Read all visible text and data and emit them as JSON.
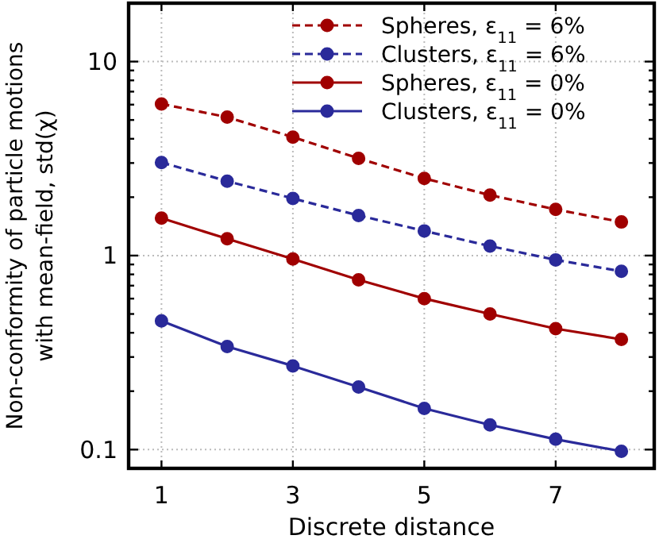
{
  "chart_data": {
    "type": "line",
    "xlabel": "Discrete distance",
    "ylabel": "Non-conformity of particle motions\nwith mean-field, std(χ)",
    "x": [
      1,
      2,
      3,
      4,
      5,
      6,
      7,
      8
    ],
    "series": [
      {
        "name": "Spheres, ε$_{11}$ = 6%",
        "color": "#a00000",
        "line_style": "dashed",
        "marker": "circle",
        "values": [
          6.05,
          5.17,
          4.08,
          3.17,
          2.5,
          2.05,
          1.73,
          1.49
        ]
      },
      {
        "name": "Clusters, ε$_{11}$ = 6%",
        "color": "#2a2a9a",
        "line_style": "dashed",
        "marker": "circle",
        "values": [
          3.02,
          2.42,
          1.97,
          1.61,
          1.34,
          1.12,
          0.95,
          0.83
        ]
      },
      {
        "name": "Spheres, ε$_{11}$ = 0%",
        "color": "#a00000",
        "line_style": "solid",
        "marker": "circle",
        "values": [
          1.56,
          1.22,
          0.96,
          0.75,
          0.6,
          0.5,
          0.42,
          0.37
        ]
      },
      {
        "name": "Clusters, ε$_{11}$ = 0%",
        "color": "#2a2a9a",
        "line_style": "solid",
        "marker": "circle",
        "values": [
          0.46,
          0.34,
          0.27,
          0.21,
          0.163,
          0.134,
          0.113,
          0.098
        ]
      }
    ],
    "xlim": [
      0.5,
      8.5
    ],
    "xticks": [
      1,
      3,
      5,
      7
    ],
    "ylim": [
      0.08,
      20
    ],
    "log": "y",
    "yticks": [
      {
        "value": 0.1,
        "label": "0.1"
      },
      {
        "value": 0.2,
        "label": null
      },
      {
        "value": 0.3,
        "label": null
      },
      {
        "value": 0.4,
        "label": null
      },
      {
        "value": 0.5,
        "label": null
      },
      {
        "value": 0.6,
        "label": null
      },
      {
        "value": 0.7,
        "label": null
      },
      {
        "value": 0.8,
        "label": null
      },
      {
        "value": 0.9,
        "label": null
      },
      {
        "value": 1,
        "label": "1"
      },
      {
        "value": 2,
        "label": null
      },
      {
        "value": 3,
        "label": null
      },
      {
        "value": 4,
        "label": null
      },
      {
        "value": 5,
        "label": null
      },
      {
        "value": 6,
        "label": null
      },
      {
        "value": 7,
        "label": null
      },
      {
        "value": 8,
        "label": null
      },
      {
        "value": 9,
        "label": null
      },
      {
        "value": 10,
        "label": "10"
      }
    ],
    "grid": true,
    "legend": "top right"
  }
}
